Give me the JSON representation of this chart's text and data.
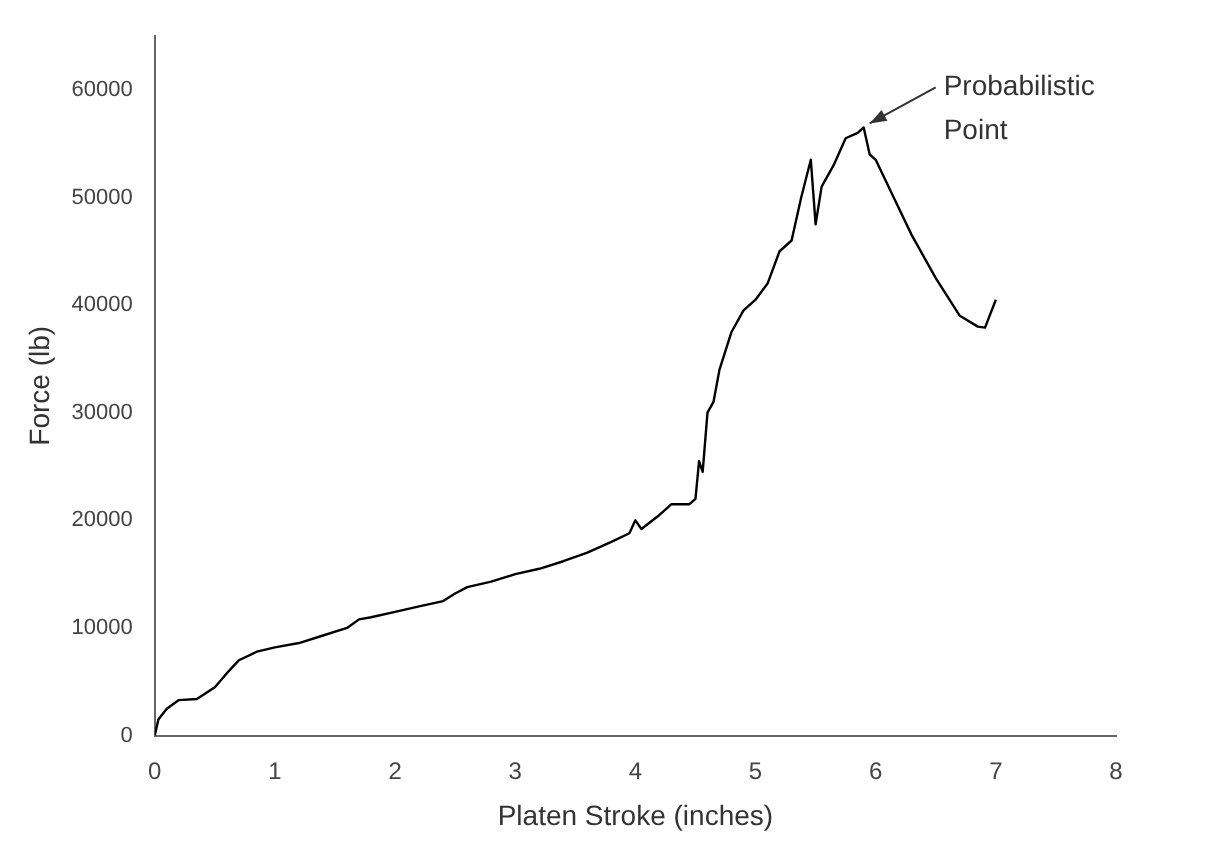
{
  "chart_data": {
    "type": "line",
    "xlabel": "Platen Stroke (inches)",
    "ylabel": "Force (lb)",
    "x": [
      0,
      0.03,
      0.1,
      0.2,
      0.35,
      0.5,
      0.6,
      0.7,
      0.85,
      1.0,
      1.2,
      1.4,
      1.6,
      1.7,
      1.8,
      2.0,
      2.2,
      2.4,
      2.5,
      2.6,
      2.8,
      3.0,
      3.2,
      3.4,
      3.6,
      3.8,
      3.95,
      4.0,
      4.05,
      4.2,
      4.3,
      4.45,
      4.5,
      4.53,
      4.56,
      4.6,
      4.65,
      4.7,
      4.8,
      4.9,
      5.0,
      5.1,
      5.2,
      5.3,
      5.38,
      5.46,
      5.5,
      5.55,
      5.65,
      5.75,
      5.85,
      5.9,
      5.95,
      6.0,
      6.15,
      6.3,
      6.5,
      6.7,
      6.85,
      6.91,
      7.0
    ],
    "series": [
      {
        "color": "#000000",
        "values": [
          0,
          1500,
          2500,
          3300,
          3400,
          4500,
          5800,
          7000,
          7800,
          8200,
          8600,
          9300,
          10000,
          10800,
          11000,
          11500,
          12000,
          12500,
          13200,
          13800,
          14300,
          15000,
          15500,
          16200,
          17000,
          18000,
          18800,
          20000,
          19200,
          20500,
          21500,
          21500,
          22000,
          25500,
          24500,
          30000,
          31000,
          34000,
          37500,
          39500,
          40500,
          42000,
          45000,
          46000,
          50000,
          53500,
          47500,
          51000,
          53000,
          55500,
          56000,
          56500,
          54000,
          53500,
          50000,
          46500,
          42500,
          39000,
          38000,
          37900,
          40500
        ]
      }
    ],
    "xlim": [
      0,
      8
    ],
    "xticks": [
      0,
      1,
      2,
      3,
      4,
      5,
      6,
      7,
      8
    ],
    "ylim": [
      0,
      65000
    ],
    "yticks": [
      0,
      10000,
      20000,
      30000,
      40000,
      50000,
      60000
    ],
    "grid": false,
    "legend": false,
    "marker": "none",
    "line_style": "solid",
    "annotations": [
      {
        "text": "Probabilistic\nPoint",
        "x": 5.9,
        "y": 56500
      }
    ]
  }
}
